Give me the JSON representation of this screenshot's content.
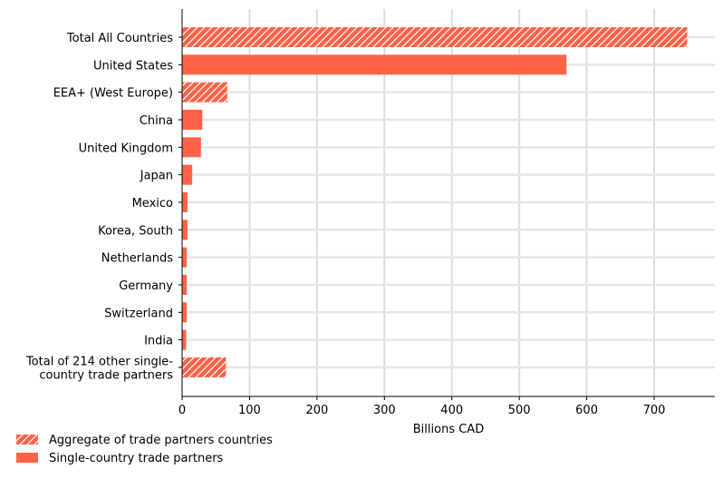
{
  "chart_data": {
    "type": "bar",
    "orientation": "horizontal",
    "categories": [
      "Total All Countries",
      "United States",
      "EEA+ (West Europe)",
      "China",
      "United Kingdom",
      "Japan",
      "Mexico",
      "Korea, South",
      "Netherlands",
      "Germany",
      "Switzerland",
      "India",
      "Total of 214 other single-\ncountry trade partners"
    ],
    "values": [
      749,
      570,
      67,
      30,
      28,
      15,
      8,
      8,
      7,
      7,
      7,
      6,
      65
    ],
    "aggregate": [
      true,
      false,
      true,
      false,
      false,
      false,
      false,
      false,
      false,
      false,
      false,
      false,
      true
    ],
    "xlabel": "Billions CAD",
    "ylabel": "",
    "title": "",
    "xlim": [
      0,
      790
    ],
    "xticks": [
      0,
      100,
      200,
      300,
      400,
      500,
      600,
      700
    ],
    "grid": true,
    "legend_position": "bottom-left",
    "bar_color": "#ff6347",
    "legend": [
      {
        "label": "Aggregate of trade partners countries",
        "style": "hatched"
      },
      {
        "label": "Single-country trade partners",
        "style": "solid"
      }
    ]
  }
}
